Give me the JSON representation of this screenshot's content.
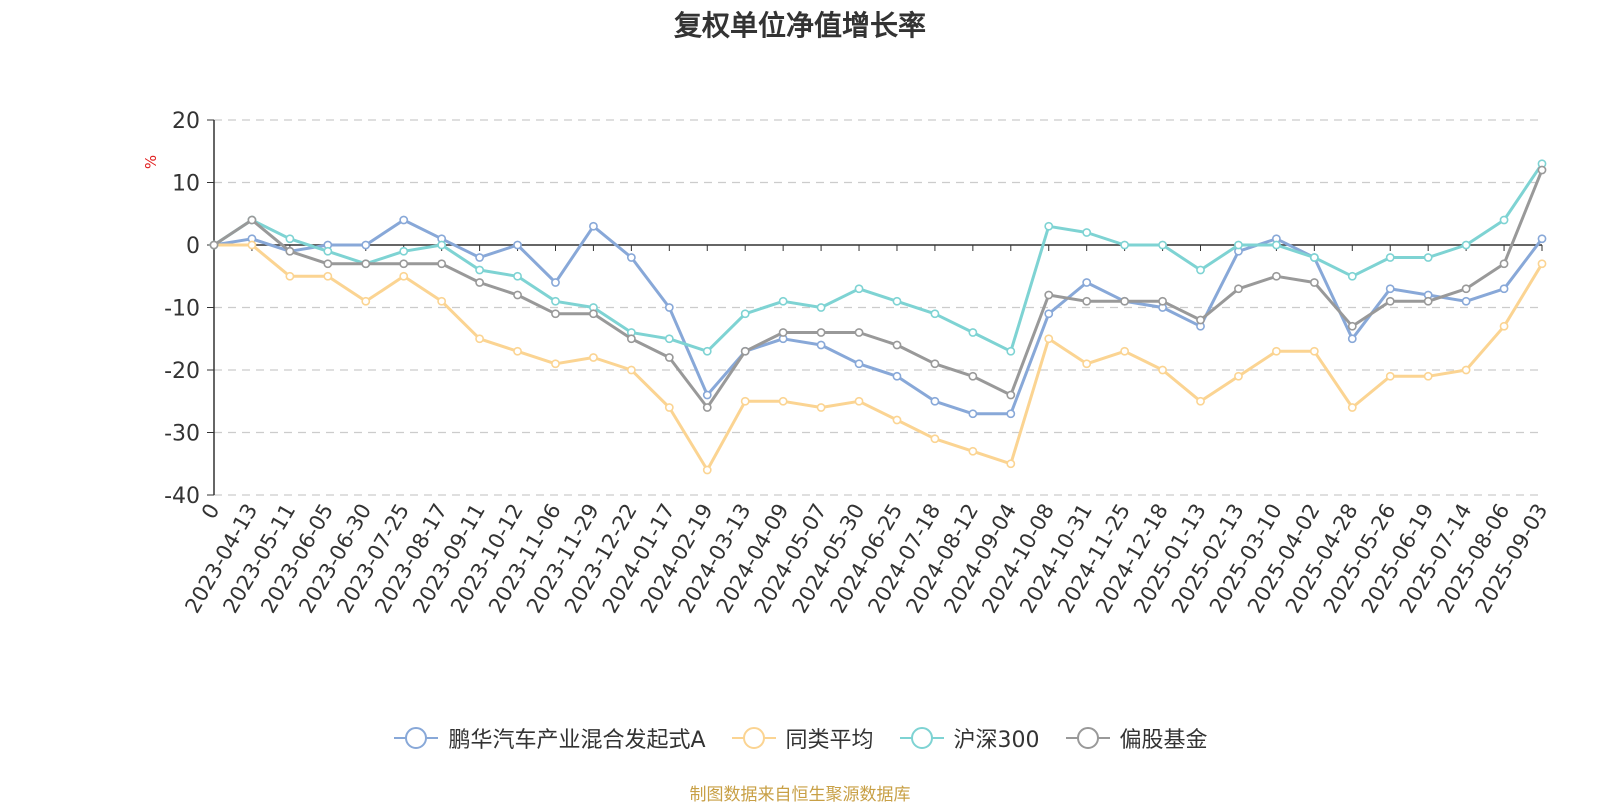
{
  "chart_data": {
    "type": "line",
    "title": "复权单位净值增长率",
    "ylabel": "%",
    "ylim": [
      -40,
      20
    ],
    "yticks": [
      20,
      10,
      0,
      -10,
      -20,
      -30,
      -40
    ],
    "grid": true,
    "legend_position": "bottom",
    "source_note": "制图数据来自恒生聚源数据库",
    "categories": [
      "0",
      "2023-04-13",
      "2023-05-11",
      "2023-06-05",
      "2023-06-30",
      "2023-07-25",
      "2023-08-17",
      "2023-09-11",
      "2023-10-12",
      "2023-11-06",
      "2023-11-29",
      "2023-12-22",
      "2024-01-17",
      "2024-02-19",
      "2024-03-13",
      "2024-04-09",
      "2024-05-07",
      "2024-05-30",
      "2024-06-25",
      "2024-07-18",
      "2024-08-12",
      "2024-09-04",
      "2024-10-08",
      "2024-10-31",
      "2024-11-25",
      "2024-12-18",
      "2025-01-13",
      "2025-02-13",
      "2025-03-10",
      "2025-04-02",
      "2025-04-28",
      "2025-05-26",
      "2025-06-19",
      "2025-07-14",
      "2025-08-06",
      "2025-09-03"
    ],
    "series": [
      {
        "name": "鹏华汽车产业混合发起式A",
        "color": "#88a8d8",
        "values": [
          0,
          1,
          -1,
          0,
          0,
          4,
          1,
          -2,
          0,
          -6,
          3,
          -2,
          -10,
          -24,
          -17,
          -15,
          -16,
          -19,
          -21,
          -25,
          -27,
          -27,
          -11,
          -6,
          -9,
          -10,
          -13,
          -1,
          1,
          -2,
          -15,
          -7,
          -8,
          -9,
          -7,
          1
        ]
      },
      {
        "name": "同类平均",
        "color": "#fbd492",
        "values": [
          0,
          0,
          -5,
          -5,
          -9,
          -5,
          -9,
          -15,
          -17,
          -19,
          -18,
          -20,
          -26,
          -36,
          -25,
          -25,
          -26,
          -25,
          -28,
          -31,
          -33,
          -35,
          -15,
          -19,
          -17,
          -20,
          -25,
          -21,
          -17,
          -17,
          -26,
          -21,
          -21,
          -20,
          -13,
          -3
        ]
      },
      {
        "name": "沪深300",
        "color": "#7ed3d3",
        "values": [
          0,
          4,
          1,
          -1,
          -3,
          -1,
          0,
          -4,
          -5,
          -9,
          -10,
          -14,
          -15,
          -17,
          -11,
          -9,
          -10,
          -7,
          -9,
          -11,
          -14,
          -17,
          3,
          2,
          0,
          0,
          -4,
          0,
          0,
          -2,
          -5,
          -2,
          -2,
          0,
          4,
          13
        ]
      },
      {
        "name": "偏股基金",
        "color": "#999999",
        "values": [
          0,
          4,
          -1,
          -3,
          -3,
          -3,
          -3,
          -6,
          -8,
          -11,
          -11,
          -15,
          -18,
          -26,
          -17,
          -14,
          -14,
          -14,
          -16,
          -19,
          -21,
          -24,
          -8,
          -9,
          -9,
          -9,
          -12,
          -7,
          -5,
          -6,
          -13,
          -9,
          -9,
          -7,
          -3,
          12
        ]
      }
    ]
  }
}
